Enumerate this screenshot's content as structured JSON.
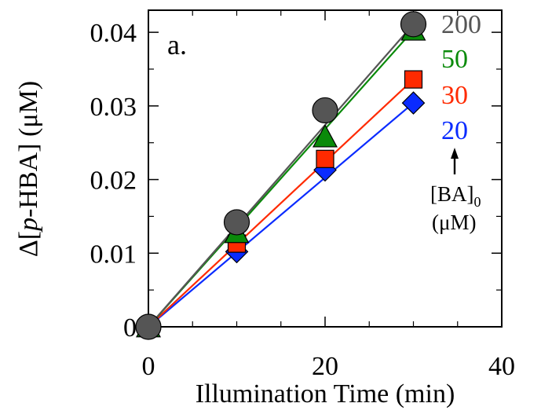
{
  "chart_data": {
    "type": "line",
    "panel_label": "a.",
    "xlabel": "Illumination Time (min)",
    "ylabel_parts": [
      "Δ[",
      "p",
      "-HBA] (μM)"
    ],
    "xlim": [
      0,
      40
    ],
    "ylim": [
      0,
      0.043
    ],
    "x_ticks": [
      0,
      20,
      40
    ],
    "x_tick_labels": [
      "0",
      "20",
      "40"
    ],
    "y_ticks": [
      0,
      0.01,
      0.02,
      0.03,
      0.04
    ],
    "y_tick_labels": [
      "0",
      "0.01",
      "0.02",
      "0.03",
      "0.04"
    ],
    "grid": false,
    "legend_title": {
      "main": "[BA]",
      "subscript": "0",
      "unit": "(μM)"
    },
    "series": [
      {
        "name": "20",
        "color": "#0a2bff",
        "marker": "diamond",
        "x": [
          0,
          10,
          20,
          30
        ],
        "y": [
          0,
          0.0102,
          0.0213,
          0.0304
        ]
      },
      {
        "name": "30",
        "color": "#ff2a00",
        "marker": "square",
        "x": [
          0,
          10,
          20,
          30
        ],
        "y": [
          0,
          0.0113,
          0.0228,
          0.0336
        ]
      },
      {
        "name": "50",
        "color": "#0a8a0a",
        "marker": "triangle",
        "x": [
          0,
          10,
          20,
          30
        ],
        "y": [
          0,
          0.0128,
          0.0258,
          0.0403
        ]
      },
      {
        "name": "200",
        "color": "#555555",
        "marker": "circle",
        "x": [
          0,
          10,
          20,
          30
        ],
        "y": [
          0,
          0.0142,
          0.0294,
          0.0411
        ]
      }
    ],
    "legend_order": [
      "200",
      "50",
      "30",
      "20"
    ]
  }
}
